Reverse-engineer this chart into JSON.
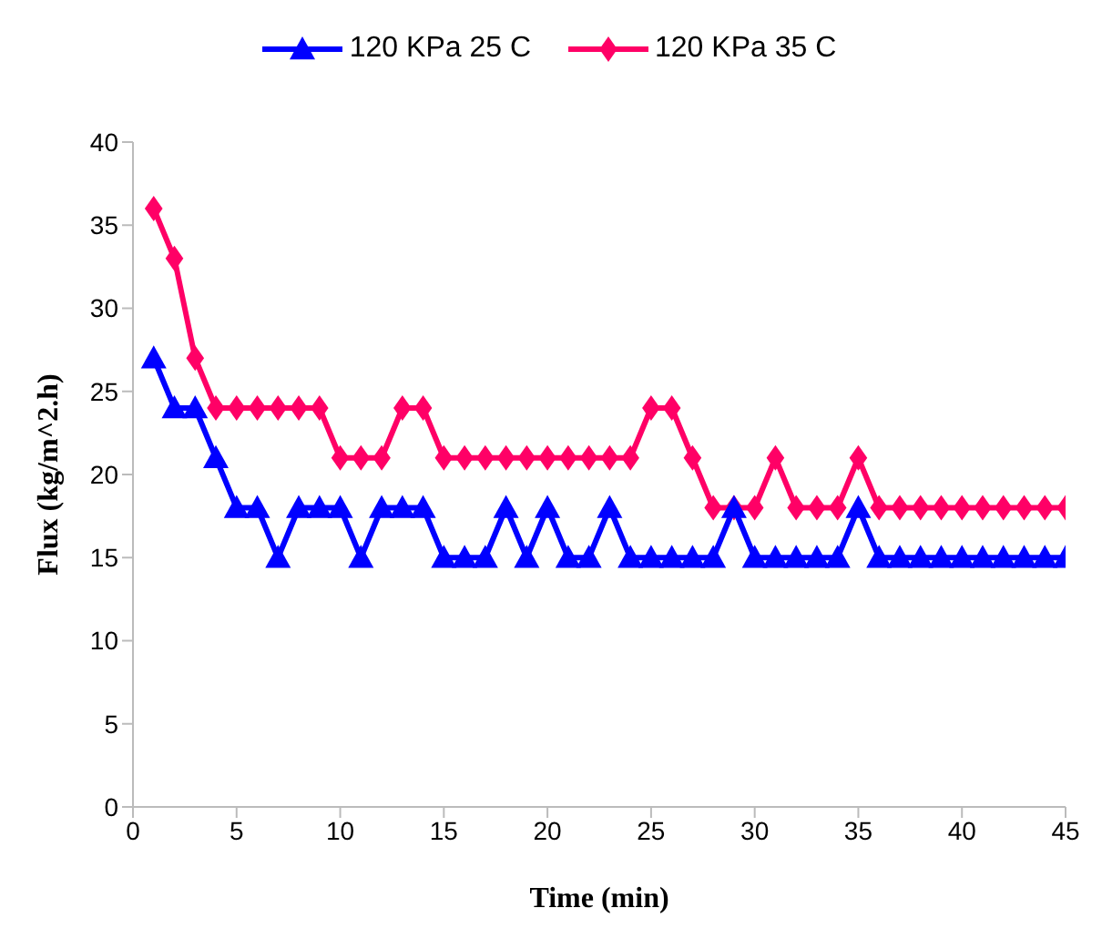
{
  "chart_data": {
    "type": "line",
    "xlabel": "Time (min)",
    "ylabel": "Flux (kg/m^2.h)",
    "x": [
      1,
      2,
      3,
      4,
      5,
      6,
      7,
      8,
      9,
      10,
      11,
      12,
      13,
      14,
      15,
      16,
      17,
      18,
      19,
      20,
      21,
      22,
      23,
      24,
      25,
      26,
      27,
      28,
      29,
      30,
      31,
      32,
      33,
      34,
      35,
      36,
      37,
      38,
      39,
      40,
      41,
      42,
      43,
      44,
      45
    ],
    "series": [
      {
        "name": "120 KPa 25 C",
        "color": "#0000ff",
        "marker": "triangle",
        "values": [
          27,
          24,
          24,
          21,
          18,
          18,
          15,
          18,
          18,
          18,
          15,
          18,
          18,
          18,
          15,
          15,
          15,
          18,
          15,
          18,
          15,
          15,
          18,
          15,
          15,
          15,
          15,
          15,
          18,
          15,
          15,
          15,
          15,
          15,
          18,
          15,
          15,
          15,
          15,
          15,
          15,
          15,
          15,
          15,
          15
        ]
      },
      {
        "name": "120 KPa 35 C",
        "color": "#ff0066",
        "marker": "diamond",
        "values": [
          36,
          33,
          27,
          24,
          24,
          24,
          24,
          24,
          24,
          21,
          21,
          21,
          24,
          24,
          21,
          21,
          21,
          21,
          21,
          21,
          21,
          21,
          21,
          21,
          24,
          24,
          21,
          18,
          18,
          18,
          21,
          18,
          18,
          18,
          21,
          18,
          18,
          18,
          18,
          18,
          18,
          18,
          18,
          18,
          18
        ]
      }
    ],
    "xlim": [
      0,
      45
    ],
    "xticks": [
      0,
      5,
      10,
      15,
      20,
      25,
      30,
      35,
      40,
      45
    ],
    "ylim": [
      0,
      40
    ],
    "yticks": [
      0,
      5,
      10,
      15,
      20,
      25,
      30,
      35,
      40
    ],
    "grid": false,
    "legend": "top",
    "line_style": "solid"
  }
}
